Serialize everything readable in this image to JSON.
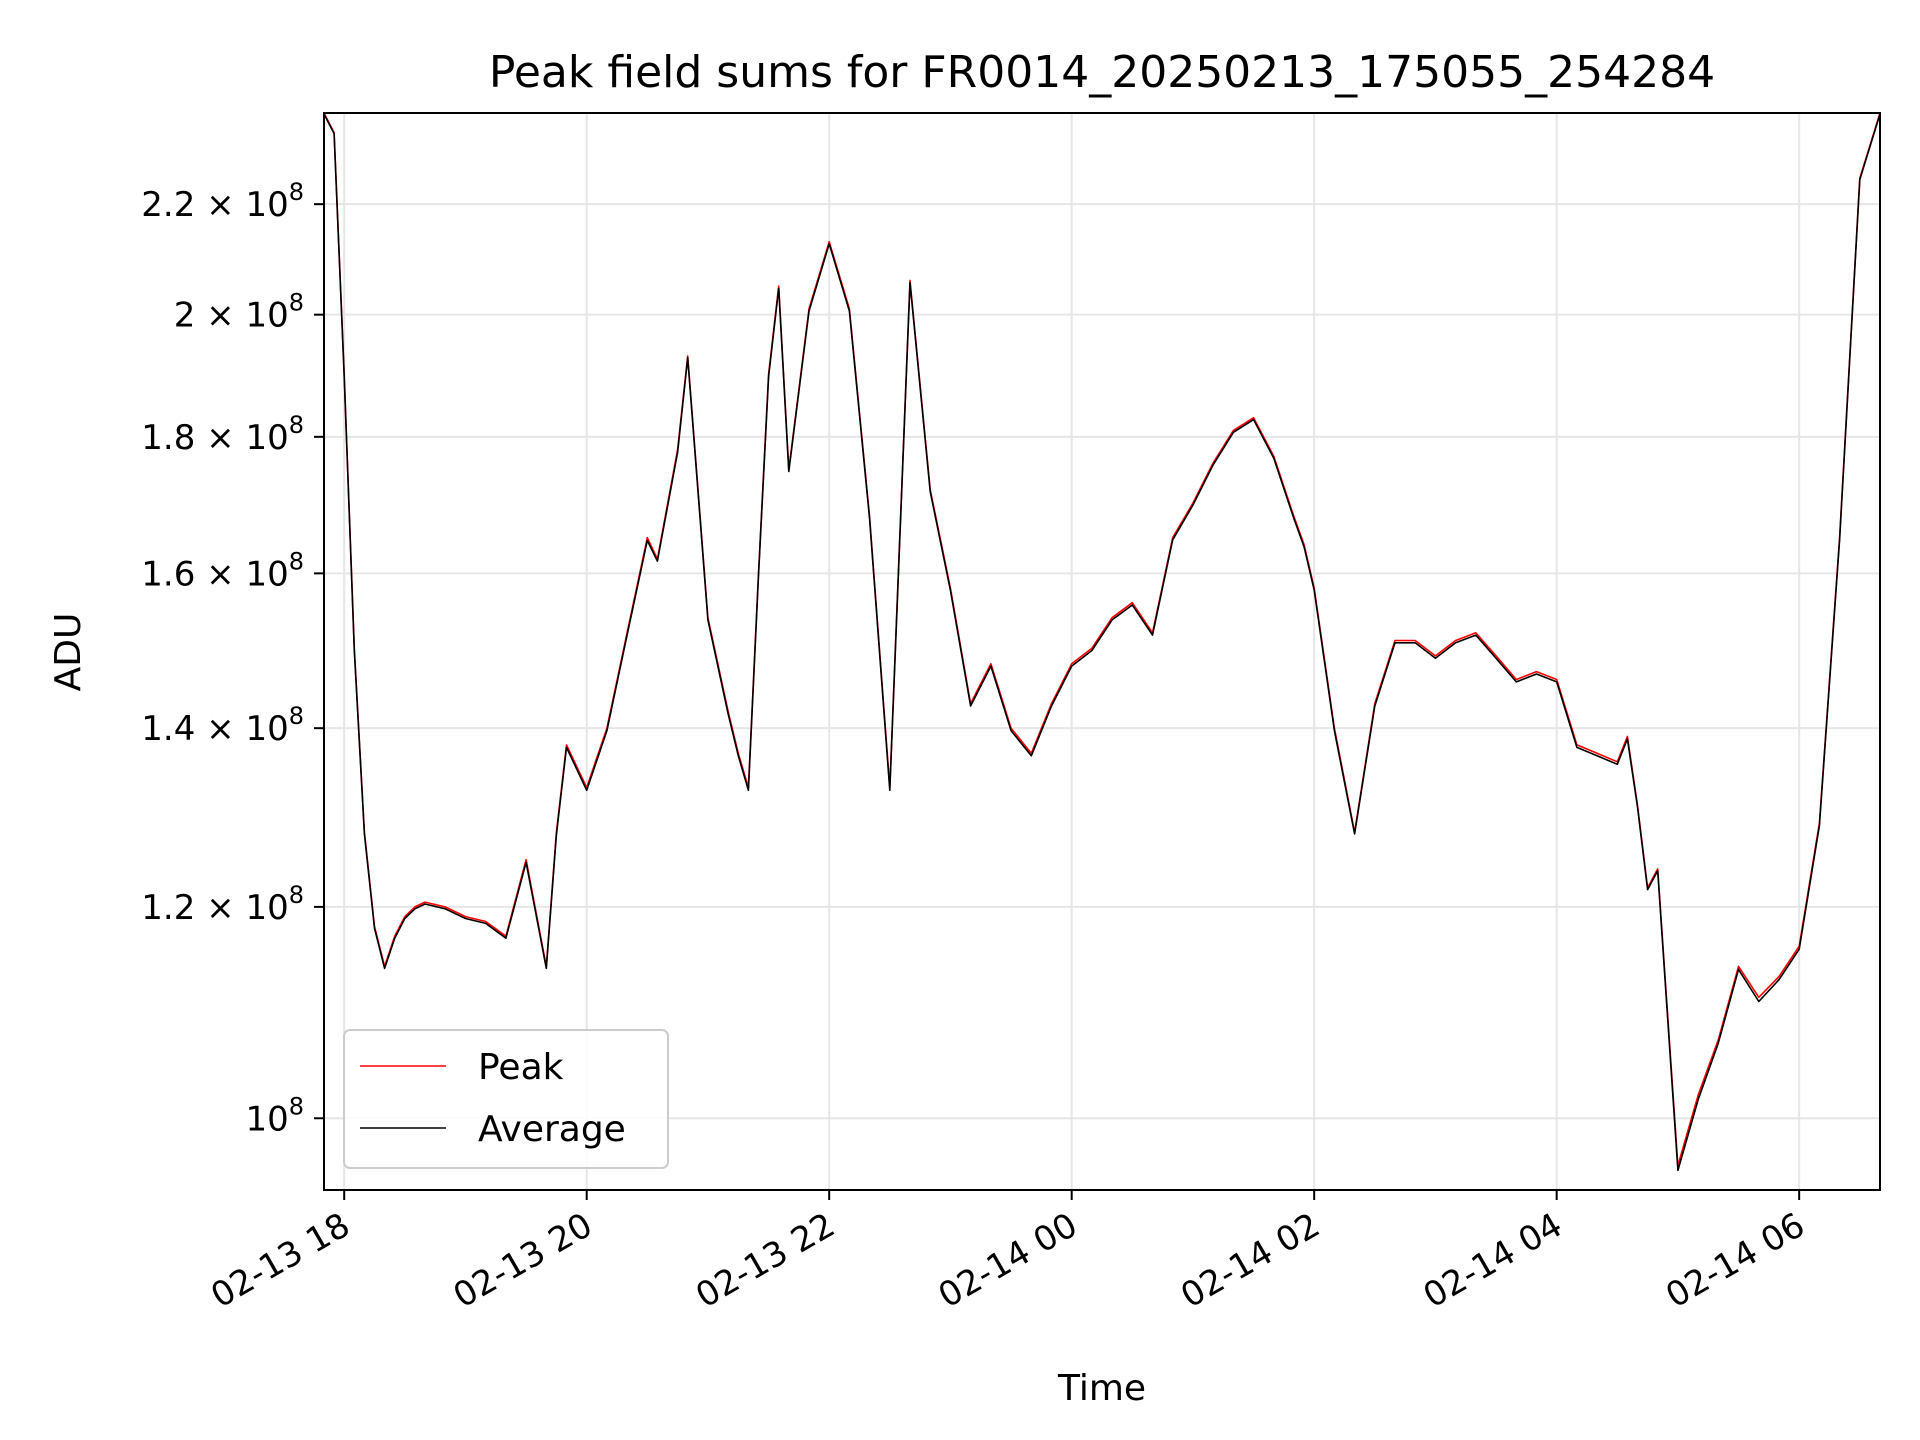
{
  "chart_data": {
    "type": "line",
    "title": "Peak field sums for FR0014_20250213_175055_254284",
    "xlabel": "Time",
    "ylabel": "ADU",
    "x_range": [
      "2025-02-13 17:50",
      "2025-02-14 06:40"
    ],
    "y_range": [
      94000000,
      238000000
    ],
    "y_scale": "log",
    "grid": true,
    "legend_position": "lower-left",
    "x_ticks": [
      {
        "value": "2025-02-13 18:00",
        "label": "02-13 18"
      },
      {
        "value": "2025-02-13 20:00",
        "label": "02-13 20"
      },
      {
        "value": "2025-02-13 22:00",
        "label": "02-13 22"
      },
      {
        "value": "2025-02-14 00:00",
        "label": "02-14 00"
      },
      {
        "value": "2025-02-14 02:00",
        "label": "02-14 02"
      },
      {
        "value": "2025-02-14 04:00",
        "label": "02-14 04"
      },
      {
        "value": "2025-02-14 06:00",
        "label": "02-14 06"
      }
    ],
    "y_ticks": [
      {
        "value": 100000000,
        "mantissa": "",
        "exponent": "8"
      },
      {
        "value": 120000000,
        "mantissa": "1.2",
        "exponent": "8"
      },
      {
        "value": 140000000,
        "mantissa": "1.4",
        "exponent": "8"
      },
      {
        "value": 160000000,
        "mantissa": "1.6",
        "exponent": "8"
      },
      {
        "value": 180000000,
        "mantissa": "1.8",
        "exponent": "8"
      },
      {
        "value": 200000000,
        "mantissa": "2",
        "exponent": "8"
      },
      {
        "value": 220000000,
        "mantissa": "2.2",
        "exponent": "8"
      }
    ],
    "colors": {
      "peak": "#ff0000",
      "average": "#000000",
      "grid": "#e6e6e6"
    },
    "series": [
      {
        "name": "Peak",
        "x": [
          "2025-02-13 17:50",
          "2025-02-13 17:55",
          "2025-02-13 18:00",
          "2025-02-13 18:05",
          "2025-02-13 18:10",
          "2025-02-13 18:15",
          "2025-02-13 18:20",
          "2025-02-13 18:25",
          "2025-02-13 18:30",
          "2025-02-13 18:35",
          "2025-02-13 18:40",
          "2025-02-13 18:50",
          "2025-02-13 19:00",
          "2025-02-13 19:10",
          "2025-02-13 19:20",
          "2025-02-13 19:30",
          "2025-02-13 19:40",
          "2025-02-13 19:45",
          "2025-02-13 19:50",
          "2025-02-13 20:00",
          "2025-02-13 20:10",
          "2025-02-13 20:20",
          "2025-02-13 20:30",
          "2025-02-13 20:35",
          "2025-02-13 20:45",
          "2025-02-13 20:50",
          "2025-02-13 21:00",
          "2025-02-13 21:10",
          "2025-02-13 21:15",
          "2025-02-13 21:20",
          "2025-02-13 21:25",
          "2025-02-13 21:30",
          "2025-02-13 21:35",
          "2025-02-13 21:40",
          "2025-02-13 21:50",
          "2025-02-13 22:00",
          "2025-02-13 22:10",
          "2025-02-13 22:20",
          "2025-02-13 22:30",
          "2025-02-13 22:40",
          "2025-02-13 22:50",
          "2025-02-13 23:00",
          "2025-02-13 23:10",
          "2025-02-13 23:20",
          "2025-02-13 23:30",
          "2025-02-13 23:40",
          "2025-02-13 23:50",
          "2025-02-14 00:00",
          "2025-02-14 00:10",
          "2025-02-14 00:20",
          "2025-02-14 00:30",
          "2025-02-14 00:40",
          "2025-02-14 00:50",
          "2025-02-14 01:00",
          "2025-02-14 01:10",
          "2025-02-14 01:20",
          "2025-02-14 01:30",
          "2025-02-14 01:40",
          "2025-02-14 01:50",
          "2025-02-14 01:55",
          "2025-02-14 02:00",
          "2025-02-14 02:10",
          "2025-02-14 02:20",
          "2025-02-14 02:30",
          "2025-02-14 02:40",
          "2025-02-14 02:50",
          "2025-02-14 03:00",
          "2025-02-14 03:10",
          "2025-02-14 03:20",
          "2025-02-14 03:30",
          "2025-02-14 03:40",
          "2025-02-14 03:50",
          "2025-02-14 04:00",
          "2025-02-14 04:10",
          "2025-02-14 04:20",
          "2025-02-14 04:30",
          "2025-02-14 04:35",
          "2025-02-14 04:40",
          "2025-02-14 04:45",
          "2025-02-14 04:50",
          "2025-02-14 05:00",
          "2025-02-14 05:10",
          "2025-02-14 05:20",
          "2025-02-14 05:30",
          "2025-02-14 05:40",
          "2025-02-14 05:50",
          "2025-02-14 06:00",
          "2025-02-14 06:10",
          "2025-02-14 06:20",
          "2025-02-14 06:30",
          "2025-02-14 06:40"
        ],
        "values": [
          238000000,
          234000000,
          190000000,
          150000000,
          128000000,
          118000000,
          114000000,
          117000000,
          119000000,
          120000000,
          120500000,
          120000000,
          119000000,
          118500000,
          117000000,
          125000000,
          114000000,
          128000000,
          138000000,
          133000000,
          140000000,
          152000000,
          165000000,
          162000000,
          178000000,
          193000000,
          154000000,
          142000000,
          137000000,
          133000000,
          160000000,
          190000000,
          205000000,
          175000000,
          201000000,
          213000000,
          201000000,
          168000000,
          133000000,
          206000000,
          172000000,
          158000000,
          143000000,
          148000000,
          140000000,
          137000000,
          143000000,
          148000000,
          150000000,
          154000000,
          156000000,
          152000000,
          165000000,
          170000000,
          176000000,
          181000000,
          183000000,
          177000000,
          168000000,
          164000000,
          158000000,
          140000000,
          128000000,
          143000000,
          151000000,
          151000000,
          149000000,
          151000000,
          152000000,
          149000000,
          146000000,
          147000000,
          146000000,
          138000000,
          137000000,
          136000000,
          139000000,
          131000000,
          122000000,
          124000000,
          96000000,
          102000000,
          107000000,
          114000000,
          111000000,
          113000000,
          116000000,
          129000000,
          165000000,
          225000000,
          238000000
        ]
      },
      {
        "name": "Average",
        "x": [
          "2025-02-13 17:50",
          "2025-02-13 17:55",
          "2025-02-13 18:00",
          "2025-02-13 18:05",
          "2025-02-13 18:10",
          "2025-02-13 18:15",
          "2025-02-13 18:20",
          "2025-02-13 18:25",
          "2025-02-13 18:30",
          "2025-02-13 18:35",
          "2025-02-13 18:40",
          "2025-02-13 18:50",
          "2025-02-13 19:00",
          "2025-02-13 19:10",
          "2025-02-13 19:20",
          "2025-02-13 19:30",
          "2025-02-13 19:40",
          "2025-02-13 19:45",
          "2025-02-13 19:50",
          "2025-02-13 20:00",
          "2025-02-13 20:10",
          "2025-02-13 20:20",
          "2025-02-13 20:30",
          "2025-02-13 20:35",
          "2025-02-13 20:45",
          "2025-02-13 20:50",
          "2025-02-13 21:00",
          "2025-02-13 21:10",
          "2025-02-13 21:15",
          "2025-02-13 21:20",
          "2025-02-13 21:25",
          "2025-02-13 21:30",
          "2025-02-13 21:35",
          "2025-02-13 21:40",
          "2025-02-13 21:50",
          "2025-02-13 22:00",
          "2025-02-13 22:10",
          "2025-02-13 22:20",
          "2025-02-13 22:30",
          "2025-02-13 22:40",
          "2025-02-13 22:50",
          "2025-02-13 23:00",
          "2025-02-13 23:10",
          "2025-02-13 23:20",
          "2025-02-13 23:30",
          "2025-02-13 23:40",
          "2025-02-13 23:50",
          "2025-02-14 00:00",
          "2025-02-14 00:10",
          "2025-02-14 00:20",
          "2025-02-14 00:30",
          "2025-02-14 00:40",
          "2025-02-14 00:50",
          "2025-02-14 01:00",
          "2025-02-14 01:10",
          "2025-02-14 01:20",
          "2025-02-14 01:30",
          "2025-02-14 01:40",
          "2025-02-14 01:50",
          "2025-02-14 01:55",
          "2025-02-14 02:00",
          "2025-02-14 02:10",
          "2025-02-14 02:20",
          "2025-02-14 02:30",
          "2025-02-14 02:40",
          "2025-02-14 02:50",
          "2025-02-14 03:00",
          "2025-02-14 03:10",
          "2025-02-14 03:20",
          "2025-02-14 03:30",
          "2025-02-14 03:40",
          "2025-02-14 03:50",
          "2025-02-14 04:00",
          "2025-02-14 04:10",
          "2025-02-14 04:20",
          "2025-02-14 04:30",
          "2025-02-14 04:35",
          "2025-02-14 04:40",
          "2025-02-14 04:45",
          "2025-02-14 04:50",
          "2025-02-14 05:00",
          "2025-02-14 05:10",
          "2025-02-14 05:20",
          "2025-02-14 05:30",
          "2025-02-14 05:40",
          "2025-02-14 05:50",
          "2025-02-14 06:00",
          "2025-02-14 06:10",
          "2025-02-14 06:20",
          "2025-02-14 06:30",
          "2025-02-14 06:40"
        ],
        "values": [
          237800000,
          233800000,
          189600000,
          149700000,
          127800000,
          117800000,
          113800000,
          116800000,
          118800000,
          119800000,
          120300000,
          119800000,
          118800000,
          118300000,
          116800000,
          124700000,
          113800000,
          127700000,
          137700000,
          132700000,
          139700000,
          151700000,
          164600000,
          161700000,
          177600000,
          192700000,
          153700000,
          141700000,
          136700000,
          132700000,
          159700000,
          189600000,
          204600000,
          174700000,
          200600000,
          212600000,
          200600000,
          167700000,
          132700000,
          205600000,
          171700000,
          157700000,
          142700000,
          147700000,
          139700000,
          136700000,
          142700000,
          147700000,
          149700000,
          153700000,
          155700000,
          151700000,
          164700000,
          169700000,
          175700000,
          180700000,
          182700000,
          176700000,
          167700000,
          163700000,
          157700000,
          139700000,
          127800000,
          142700000,
          150700000,
          150700000,
          148700000,
          150700000,
          151700000,
          148700000,
          145700000,
          146700000,
          145700000,
          137700000,
          136700000,
          135700000,
          138700000,
          130800000,
          121800000,
          123800000,
          95600000,
          101600000,
          106700000,
          113700000,
          110600000,
          112700000,
          115700000,
          128700000,
          164700000,
          224700000,
          237800000
        ]
      }
    ]
  }
}
